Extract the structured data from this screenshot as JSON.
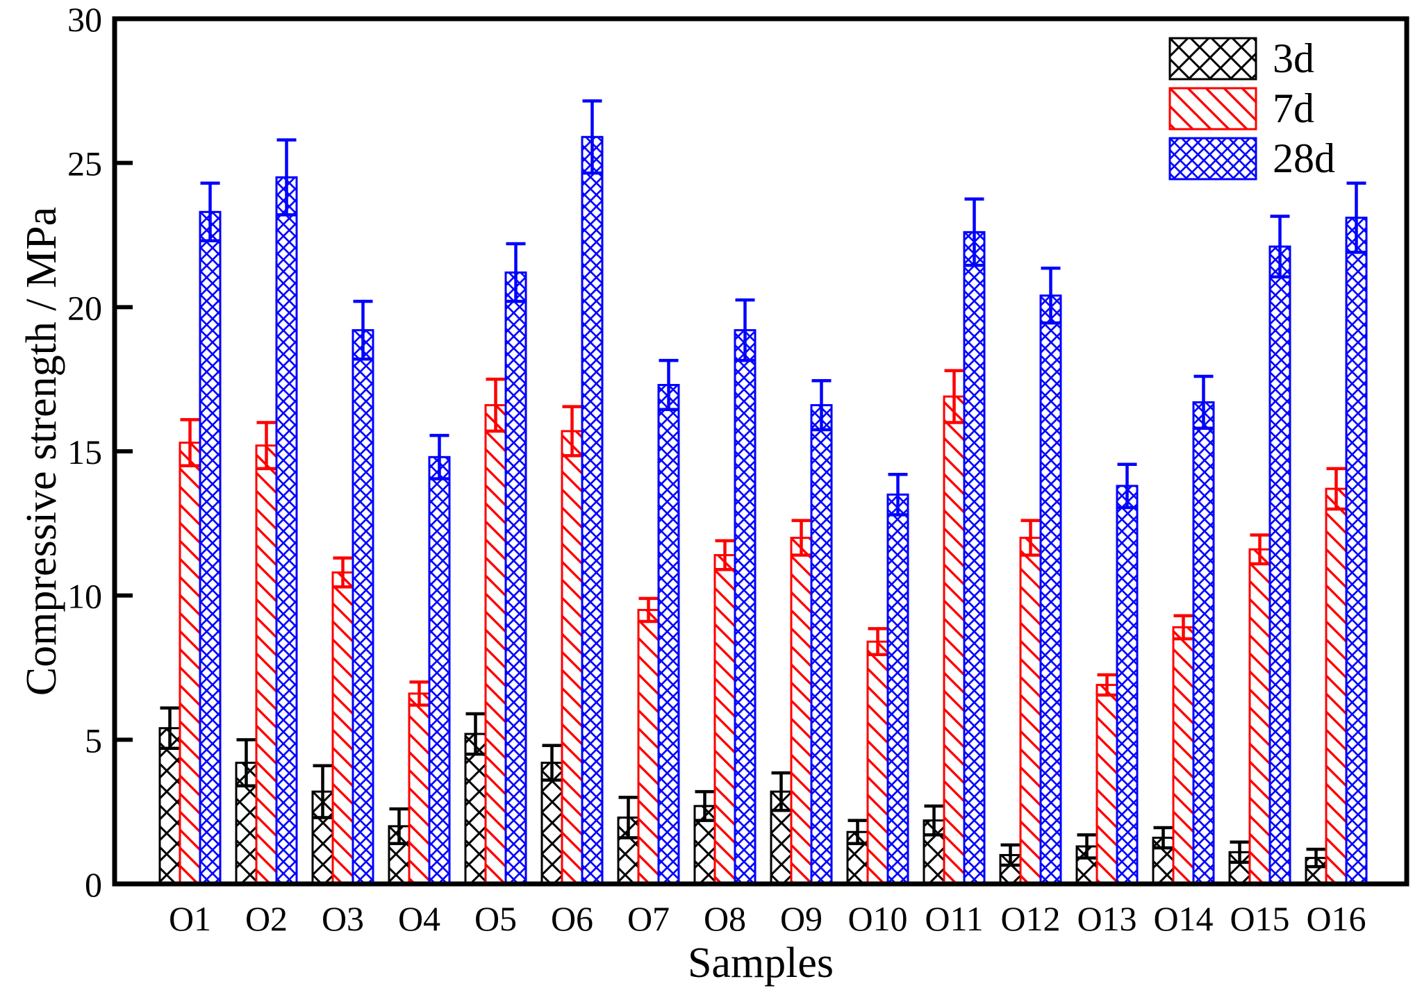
{
  "chart_data": {
    "type": "bar",
    "title": "",
    "xlabel": "Samples",
    "ylabel": "Compressive strength / MPa",
    "ylim": [
      0,
      30
    ],
    "yticks": [
      0,
      5,
      10,
      15,
      20,
      25,
      30
    ],
    "grid": false,
    "legend_position": "top-right-inside",
    "categories": [
      "O1",
      "O2",
      "O3",
      "O4",
      "O5",
      "O6",
      "O7",
      "O8",
      "O9",
      "O10",
      "O11",
      "O12",
      "O13",
      "O14",
      "O15",
      "O16"
    ],
    "series": [
      {
        "name": "3d",
        "color": "#000000",
        "hatch": "crosshatch",
        "values": [
          5.4,
          4.2,
          3.2,
          2.0,
          5.2,
          4.2,
          2.3,
          2.7,
          3.2,
          1.8,
          2.2,
          1.0,
          1.3,
          1.6,
          1.1,
          0.9
        ],
        "errors": [
          0.7,
          0.8,
          0.9,
          0.6,
          0.7,
          0.6,
          0.7,
          0.5,
          0.65,
          0.4,
          0.5,
          0.35,
          0.4,
          0.35,
          0.35,
          0.3
        ]
      },
      {
        "name": "7d",
        "color": "#ff0000",
        "hatch": "diagonal",
        "values": [
          15.3,
          15.2,
          10.8,
          6.6,
          16.6,
          15.7,
          9.5,
          11.4,
          12.0,
          8.4,
          16.9,
          12.0,
          6.9,
          8.9,
          11.6,
          13.7
        ],
        "errors": [
          0.8,
          0.8,
          0.5,
          0.4,
          0.9,
          0.85,
          0.4,
          0.5,
          0.6,
          0.45,
          0.9,
          0.6,
          0.35,
          0.4,
          0.5,
          0.7
        ]
      },
      {
        "name": "28d",
        "color": "#0000ff",
        "hatch": "dense-crosshatch",
        "values": [
          23.3,
          24.5,
          19.2,
          14.8,
          21.2,
          25.9,
          17.3,
          19.2,
          16.6,
          13.5,
          22.6,
          20.4,
          13.8,
          16.7,
          22.1,
          23.1
        ],
        "errors": [
          1.0,
          1.3,
          1.0,
          0.75,
          1.0,
          1.25,
          0.85,
          1.05,
          0.85,
          0.7,
          1.15,
          0.95,
          0.75,
          0.9,
          1.05,
          1.2
        ]
      }
    ]
  }
}
